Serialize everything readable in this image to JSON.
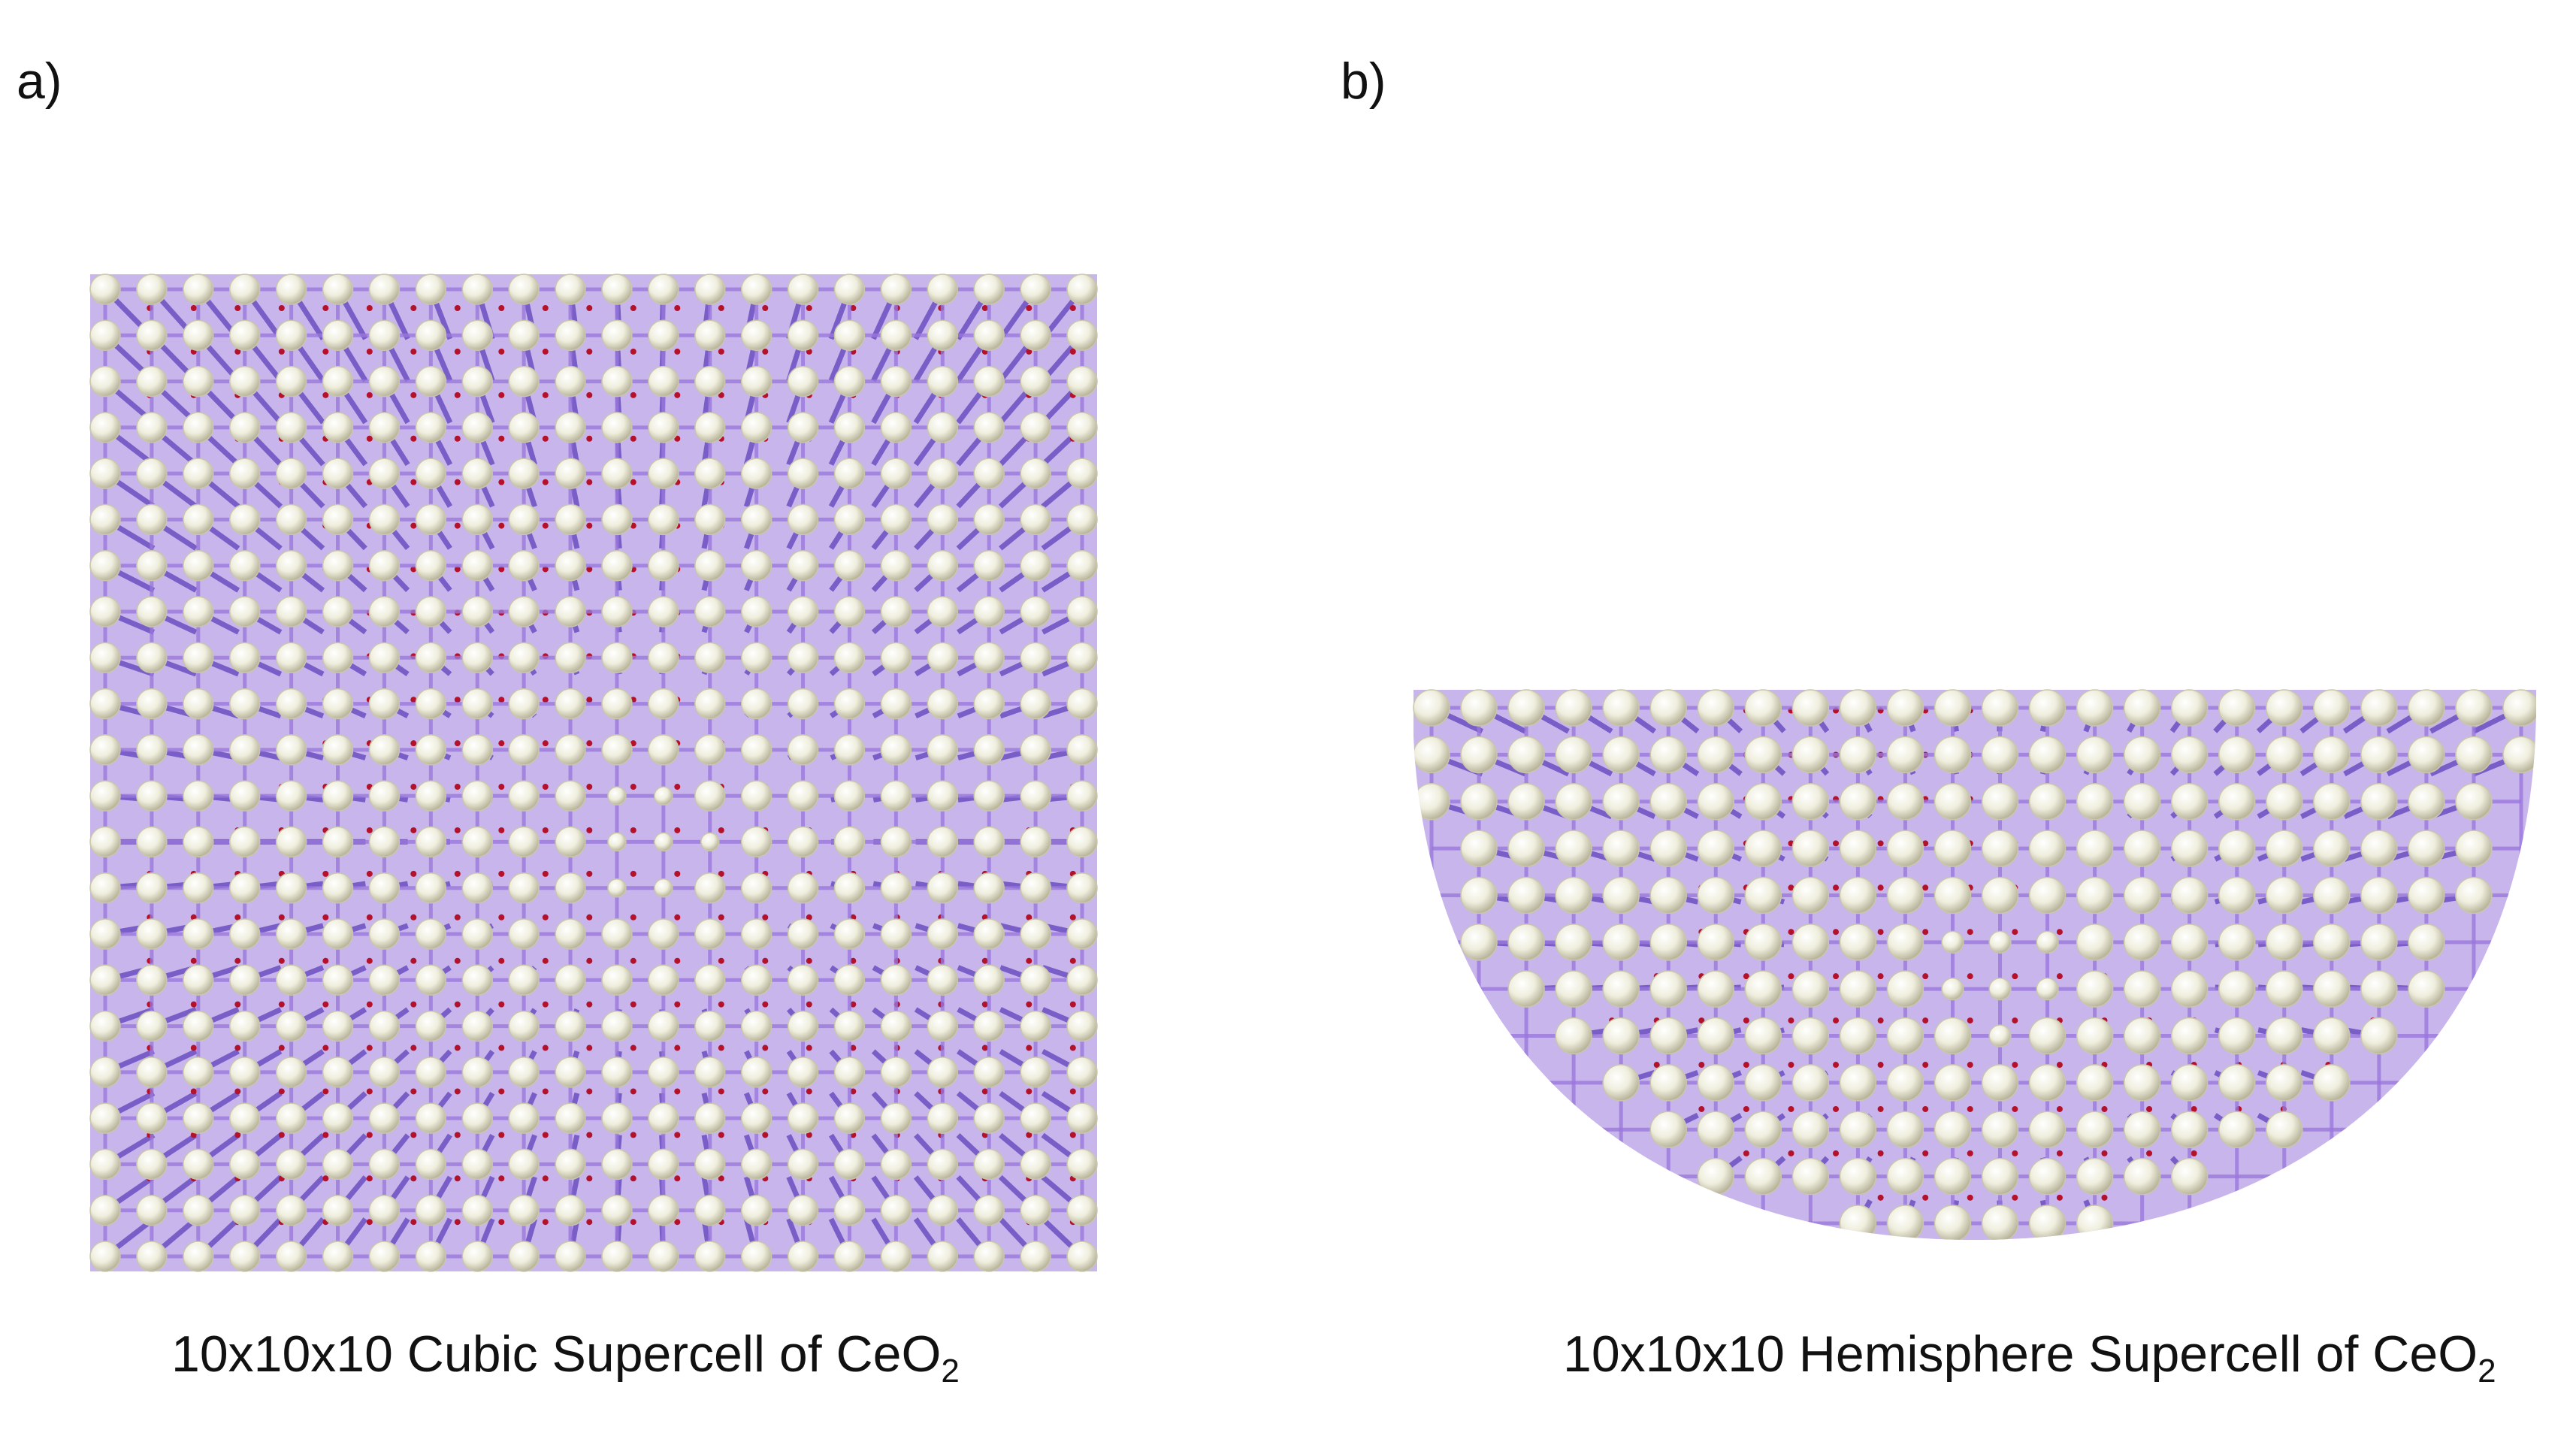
{
  "panels": [
    {
      "label": "a)",
      "caption_main": "10x10x10 Cubic Supercell of CeO",
      "caption_sub": "2"
    },
    {
      "label": "b)",
      "caption_main": "10x10x10 Hemisphere Supercell of CeO",
      "caption_sub": "2"
    }
  ],
  "colors": {
    "bond": "#9a78dc",
    "bond_dark": "#7a5ec8",
    "atom_ce": "#efeedd",
    "atom_ce_shade": "#c9c6ae",
    "atom_o": "#b3122a"
  }
}
